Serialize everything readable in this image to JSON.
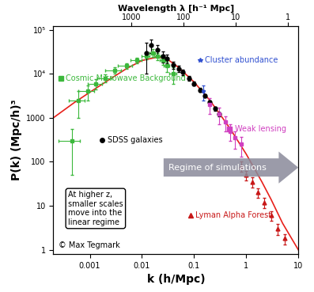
{
  "chart_data": {
    "type": "scatter",
    "xlabel": "k (h/Mpc)",
    "ylabel": "P(k) (Mpc/h)³",
    "x2label": "Wavelength λ [h⁻¹ Mpc]",
    "log": true,
    "xlim": [
      0.0002,
      10
    ],
    "ylim": [
      0.8,
      120000
    ],
    "xticks": [
      0.001,
      0.01,
      0.1,
      1,
      10
    ],
    "yticks": [
      1,
      10,
      100,
      1000,
      {
        "value": 10000,
        "label": "10⁴"
      },
      {
        "value": 100000,
        "label": "10⁵"
      }
    ],
    "x2lim": [
      31416,
      0.628
    ],
    "x2ticks": [
      1000,
      100,
      10,
      1
    ],
    "annotations": [
      "Regime of simulations",
      "At higher z,\nsmaller scales\nmove into the\nlinear regime",
      "© Max Tegmark"
    ],
    "series": [
      {
        "type": "line",
        "color": "#e8201a",
        "line_style": "solid",
        "x": [
          0.0002,
          0.0005,
          0.001,
          0.002,
          0.005,
          0.01,
          0.02,
          0.03,
          0.05,
          0.1,
          0.2,
          0.3,
          0.5,
          1,
          2,
          3,
          5,
          10
        ],
        "values": [
          1000,
          2200,
          3800,
          6500,
          13000,
          20000,
          24000,
          22000,
          14000,
          6500,
          2500,
          1300,
          550,
          150,
          35,
          14,
          4,
          1
        ]
      },
      {
        "name": "Cosmic Microwave Background",
        "color": "#3cb83c",
        "marker": "s",
        "x": [
          0.00045,
          0.0006,
          0.0009,
          0.0013,
          0.002,
          0.003,
          0.005,
          0.008,
          0.012,
          0.016,
          0.02,
          0.025,
          0.03,
          0.04
        ],
        "values": [
          300,
          2500,
          4000,
          6000,
          8000,
          12000,
          15000,
          20000,
          25000,
          30000,
          25000,
          20000,
          15000,
          10000
        ],
        "yerr": [
          250,
          1500,
          1500,
          1500,
          1500,
          2000,
          2000,
          3000,
          4000,
          6000,
          5000,
          4000,
          4000,
          4000
        ],
        "xerr": [
          0.0002,
          0.0002,
          0.0003,
          0.0004,
          0.0006,
          0.001,
          0.0015,
          0.002,
          0.002,
          0.002,
          0.003,
          0.003,
          0.004,
          0.006
        ]
      },
      {
        "name": "SDSS galaxies",
        "color": "#000000",
        "marker": "o",
        "x": [
          0.012,
          0.015,
          0.02,
          0.025,
          0.03,
          0.04,
          0.05,
          0.06,
          0.08,
          0.1,
          0.13,
          0.16,
          0.2,
          0.25,
          0.3
        ],
        "values": [
          30000,
          45000,
          35000,
          25000,
          22000,
          16000,
          13000,
          11000,
          8000,
          6000,
          4300,
          3200,
          2300,
          1600,
          1200
        ],
        "yerr": [
          20000,
          15000,
          10000,
          7000,
          5000,
          3000,
          2200,
          1600,
          1000,
          600,
          400,
          300,
          200,
          150,
          120
        ]
      },
      {
        "name": "Cluster abundance",
        "color": "#3050d0",
        "marker": "*",
        "x": [
          0.15
        ],
        "values": [
          4000
        ],
        "yerr": [
          1500
        ]
      },
      {
        "name": "Weak lensing",
        "color": "#d040c0",
        "marker": "s",
        "x": [
          0.2,
          0.3,
          0.4,
          0.5,
          0.6,
          0.8
        ],
        "values": [
          2000,
          1200,
          800,
          500,
          350,
          250
        ],
        "yerr": [
          800,
          500,
          300,
          200,
          150,
          120
        ]
      },
      {
        "name": "Lyman Alpha Forest",
        "color": "#c81818",
        "marker": "^",
        "x": [
          0.8,
          1.0,
          1.3,
          1.7,
          2.2,
          3.0,
          4.0,
          5.5
        ],
        "values": [
          80,
          50,
          35,
          20,
          12,
          6,
          3,
          1.8
        ],
        "yerr": [
          20,
          12,
          9,
          5,
          3,
          1.5,
          0.8,
          0.5
        ]
      }
    ]
  }
}
